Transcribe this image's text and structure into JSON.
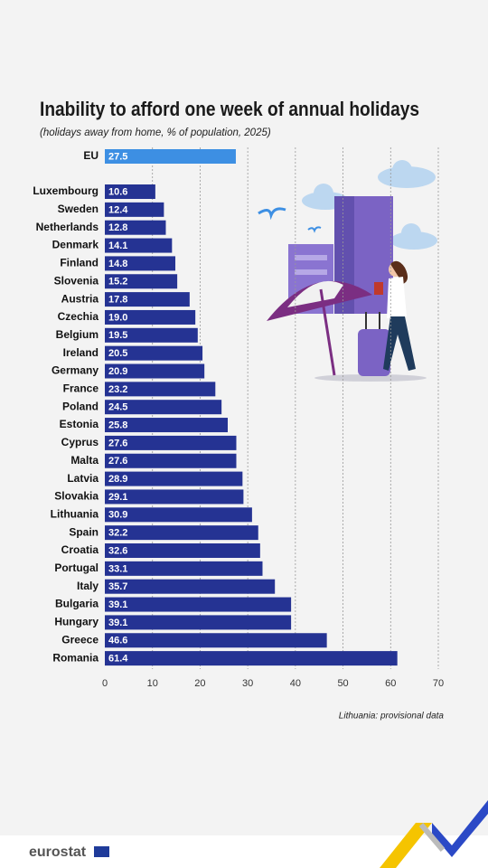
{
  "chart_data": {
    "type": "bar",
    "orientation": "horizontal",
    "title": "Inability to afford one week of annual holidays",
    "subtitle": "(holidays away from home, % of population, 2025)",
    "categories": [
      "EU",
      "Luxembourg",
      "Sweden",
      "Netherlands",
      "Denmark",
      "Finland",
      "Slovenia",
      "Austria",
      "Czechia",
      "Belgium",
      "Ireland",
      "Germany",
      "France",
      "Poland",
      "Estonia",
      "Cyprus",
      "Malta",
      "Latvia",
      "Slovakia",
      "Lithuania",
      "Spain",
      "Croatia",
      "Portugal",
      "Italy",
      "Bulgaria",
      "Hungary",
      "Greece",
      "Romania"
    ],
    "values": [
      27.5,
      10.6,
      12.4,
      12.8,
      14.1,
      14.8,
      15.2,
      17.8,
      19.0,
      19.5,
      20.5,
      20.9,
      23.2,
      24.5,
      25.8,
      27.6,
      27.6,
      28.9,
      29.1,
      30.9,
      32.2,
      32.6,
      33.1,
      35.7,
      39.1,
      39.1,
      46.6,
      61.4
    ],
    "value_labels": [
      "27.5",
      "10.6",
      "12.4",
      "12.8",
      "14.1",
      "14.8",
      "15.2",
      "17.8",
      "19.0",
      "19.5",
      "20.5",
      "20.9",
      "23.2",
      "24.5",
      "25.8",
      "27.6",
      "27.6",
      "28.9",
      "29.1",
      "30.9",
      "32.2",
      "32.6",
      "33.1",
      "35.7",
      "39.1",
      "39.1",
      "46.6",
      "61.4"
    ],
    "colors": [
      "#3d8fe3",
      "#253393",
      "#253393",
      "#253393",
      "#253393",
      "#253393",
      "#253393",
      "#253393",
      "#253393",
      "#253393",
      "#253393",
      "#253393",
      "#253393",
      "#253393",
      "#253393",
      "#253393",
      "#253393",
      "#253393",
      "#253393",
      "#253393",
      "#253393",
      "#253393",
      "#253393",
      "#253393",
      "#253393",
      "#253393",
      "#253393",
      "#253393"
    ],
    "xlim": [
      0,
      70
    ],
    "xticks": [
      0,
      10,
      20,
      30,
      40,
      50,
      60,
      70
    ],
    "grid": true,
    "note": "Lithuania: provisional data",
    "footer": "eurostat"
  }
}
